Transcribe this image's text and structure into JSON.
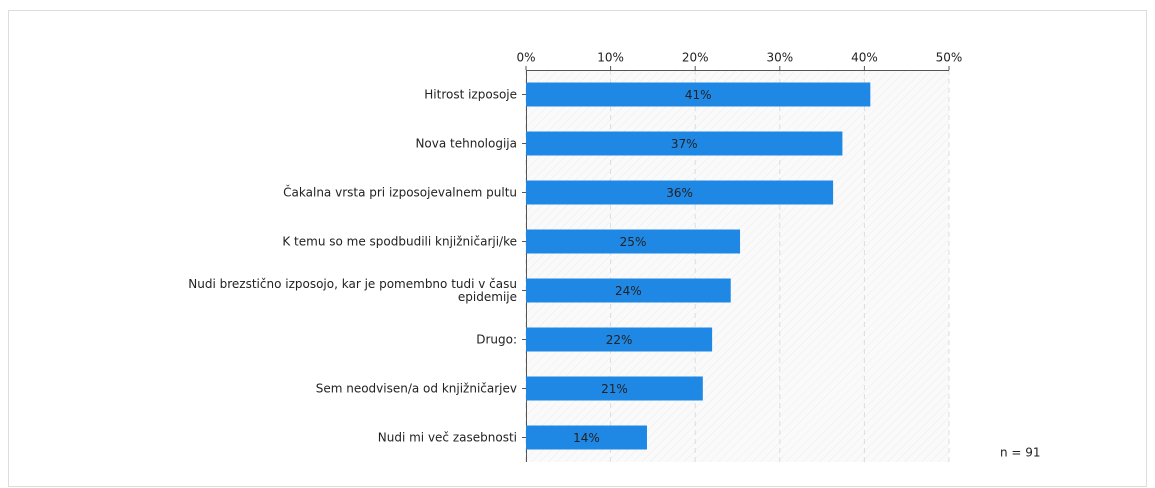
{
  "chart_data": {
    "type": "bar",
    "orientation": "horizontal",
    "categories": [
      "Hitrost izposoje",
      "Nova tehnologija",
      "Čakalna vrsta pri izposojevalnem pultu",
      "K temu so me spodbudili knjižničarji/ke",
      "Nudi brezstično izposojo, kar je pomembno tudi v času\nepidemije",
      "Drugo:",
      "Sem neodvisen/a od knjižničarjev",
      "Nudi mi več zasebnosti"
    ],
    "values": [
      40.7,
      37.4,
      36.3,
      25.3,
      24.2,
      22.0,
      20.9,
      14.3
    ],
    "value_labels": [
      "41%",
      "37%",
      "36%",
      "25%",
      "24%",
      "22%",
      "21%",
      "14%"
    ],
    "color": "#1f88e5",
    "xlim": [
      0,
      50
    ],
    "xticks": [
      {
        "value": 0,
        "label": "0%"
      },
      {
        "value": 10,
        "label": "10%"
      },
      {
        "value": 20,
        "label": "20%"
      },
      {
        "value": 30,
        "label": "30%"
      },
      {
        "value": 40,
        "label": "40%"
      },
      {
        "value": 50,
        "label": "50%"
      }
    ],
    "grid": true,
    "annotation": "n = 91"
  }
}
